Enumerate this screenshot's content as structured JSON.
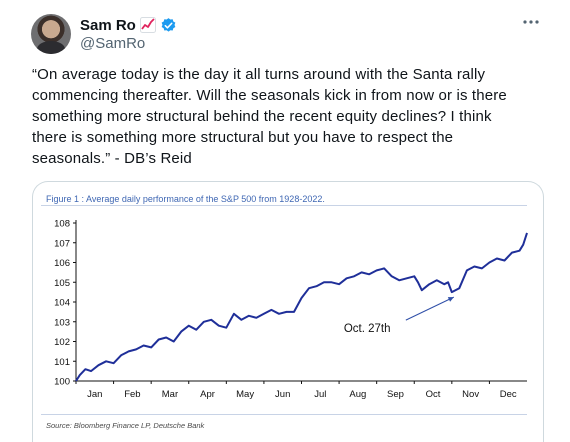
{
  "tweet": {
    "author": {
      "display_name": "Sam Ro",
      "handle": "@SamRo",
      "emoji_icon": "chart-increasing-icon",
      "verified_icon": "verified-badge-icon",
      "verified_color": "#1d9bf0"
    },
    "more_icon": "more-options-icon",
    "text": "“On average today is the day it all turns around with the Santa rally\ncommencing thereafter. Will the seasonals kick in from now or is there\nsomething more structural behind the recent equity declines? I think\nthere is something more structural but you have to respect the\nseasonals.” - DB’s Reid"
  },
  "figure": {
    "title": "Figure 1 : Average daily performance of the S&P 500 from 1928-2022.",
    "source": "Source: Bloomberg Finance LP, Deutsche Bank",
    "accent_color": "#3f67b3"
  },
  "chart_data": {
    "type": "line",
    "categories": [
      "Jan",
      "Feb",
      "Mar",
      "Apr",
      "May",
      "Jun",
      "Jul",
      "Aug",
      "Sep",
      "Oct",
      "Nov",
      "Dec"
    ],
    "yticks": [
      100,
      101,
      102,
      103,
      104,
      105,
      106,
      107,
      108
    ],
    "ylim": [
      100,
      108
    ],
    "xlim": [
      0,
      12
    ],
    "grid": false,
    "line_color": "#1f2f99",
    "series": [
      {
        "x": [
          0,
          0.1,
          0.25,
          0.4,
          0.6,
          0.8,
          1.0,
          1.2,
          1.4,
          1.6,
          1.8,
          2.0,
          2.2,
          2.4,
          2.6,
          2.8,
          3.0,
          3.2,
          3.4,
          3.6,
          3.8,
          4.0,
          4.2,
          4.4,
          4.6,
          4.8,
          5.0,
          5.2,
          5.4,
          5.6,
          5.8,
          6.0,
          6.2,
          6.4,
          6.6,
          6.8,
          7.0,
          7.2,
          7.4,
          7.6,
          7.8,
          8.0,
          8.2,
          8.4,
          8.6,
          8.8,
          9.0,
          9.1,
          9.2,
          9.4,
          9.6,
          9.8,
          9.9,
          10.0,
          10.2,
          10.4,
          10.6,
          10.8,
          11.0,
          11.2,
          11.4,
          11.6,
          11.8,
          11.9,
          12.0
        ],
        "y": [
          100.0,
          100.3,
          100.6,
          100.5,
          100.8,
          101.0,
          100.9,
          101.3,
          101.5,
          101.6,
          101.8,
          101.7,
          102.1,
          102.2,
          102.0,
          102.5,
          102.8,
          102.6,
          103.0,
          103.1,
          102.8,
          102.7,
          103.4,
          103.1,
          103.3,
          103.2,
          103.4,
          103.6,
          103.4,
          103.5,
          103.5,
          104.2,
          104.7,
          104.8,
          105.0,
          105.0,
          104.9,
          105.2,
          105.3,
          105.5,
          105.4,
          105.6,
          105.7,
          105.3,
          105.1,
          105.2,
          105.3,
          105.0,
          104.6,
          104.9,
          105.1,
          104.9,
          105.0,
          104.5,
          104.7,
          105.6,
          105.8,
          105.7,
          106.0,
          106.2,
          106.1,
          106.5,
          106.6,
          106.9,
          107.5
        ]
      }
    ],
    "annotation": {
      "text": "Oct. 27th",
      "x": 10.0,
      "y": 104.5
    }
  }
}
